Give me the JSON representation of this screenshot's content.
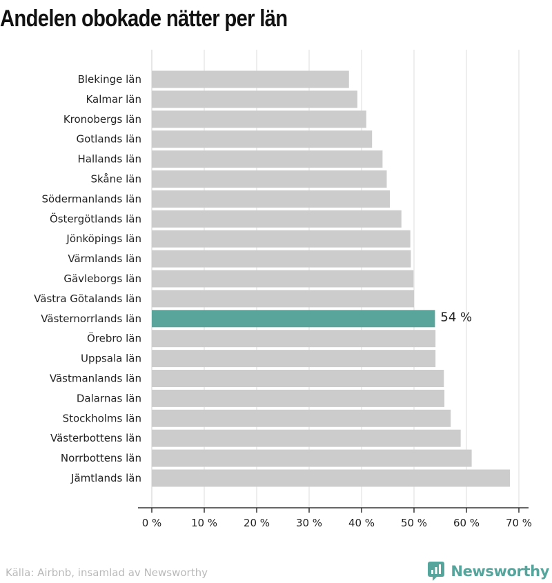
{
  "title": "Andelen obokade nätter per län",
  "source": "Källa: Airbnb, insamlad av Newsworthy",
  "brand": {
    "name": "Newsworthy",
    "logo_icon": "newsworthy-chart-bubble-icon"
  },
  "colors": {
    "bar": "#cccccc",
    "highlight": "#5aa59b",
    "brand": "#56a59d",
    "grid": "#dddddd",
    "axis": "#333333"
  },
  "chart_data": {
    "type": "bar",
    "orientation": "horizontal",
    "title": "Andelen obokade nätter per län",
    "xlim": [
      0,
      70
    ],
    "x_ticks": [
      0,
      10,
      20,
      30,
      40,
      50,
      60,
      70
    ],
    "x_tick_labels": [
      "0 %",
      "10 %",
      "20 %",
      "30 %",
      "40 %",
      "50 %",
      "60 %",
      "70 %"
    ],
    "grid": true,
    "categories": [
      "Blekinge län",
      "Kalmar län",
      "Kronobergs län",
      "Gotlands län",
      "Hallands län",
      "Skåne län",
      "Södermanlands län",
      "Östergötlands län",
      "Jönköpings län",
      "Värmlands län",
      "Gävleborgs län",
      "Västra Götalands län",
      "Västernorrlands län",
      "Örebro län",
      "Uppsala län",
      "Västmanlands län",
      "Dalarnas län",
      "Stockholms län",
      "Västerbottens län",
      "Norrbottens län",
      "Jämtlands län"
    ],
    "values": [
      37.6,
      39.2,
      40.9,
      42.0,
      44.0,
      44.8,
      45.4,
      47.6,
      49.3,
      49.4,
      49.9,
      50.0,
      54.0,
      54.1,
      54.1,
      55.7,
      55.8,
      57.0,
      58.9,
      61.0,
      68.3
    ],
    "highlight": {
      "category": "Västernorrlands län",
      "label": "54 %"
    }
  }
}
